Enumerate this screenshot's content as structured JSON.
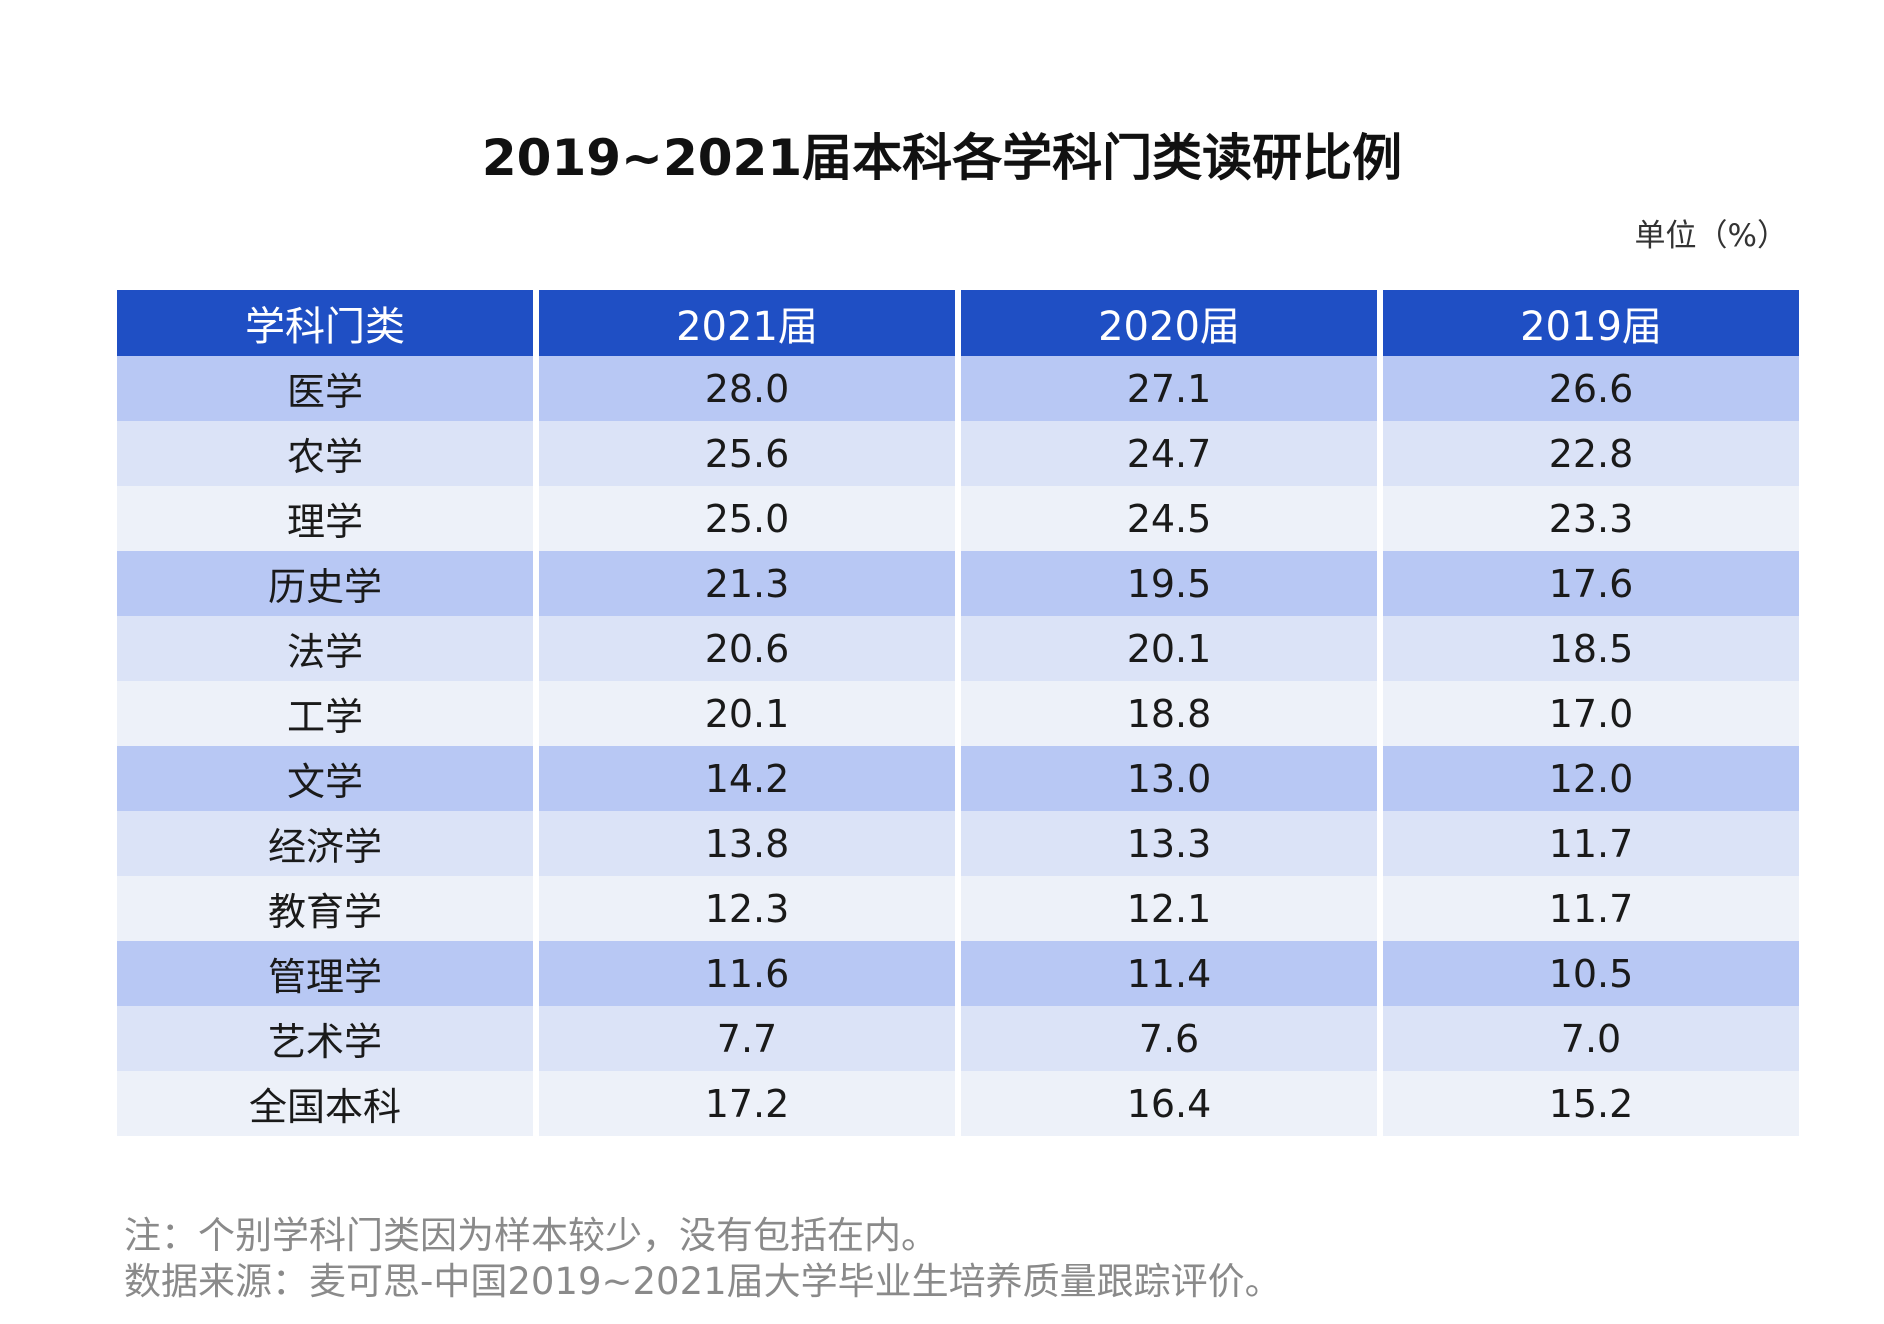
{
  "chart_data": {
    "type": "table",
    "title": "2019~2021届本科各学科门类读研比例",
    "unit": "单位（%）",
    "columns": [
      "学科门类",
      "2021届",
      "2020届",
      "2019届"
    ],
    "rows": [
      {
        "category": "医学",
        "values": [
          "28.0",
          "27.1",
          "26.6"
        ]
      },
      {
        "category": "农学",
        "values": [
          "25.6",
          "24.7",
          "22.8"
        ]
      },
      {
        "category": "理学",
        "values": [
          "25.0",
          "24.5",
          "23.3"
        ]
      },
      {
        "category": "历史学",
        "values": [
          "21.3",
          "19.5",
          "17.6"
        ]
      },
      {
        "category": "法学",
        "values": [
          "20.6",
          "20.1",
          "18.5"
        ]
      },
      {
        "category": "工学",
        "values": [
          "20.1",
          "18.8",
          "17.0"
        ]
      },
      {
        "category": "文学",
        "values": [
          "14.2",
          "13.0",
          "12.0"
        ]
      },
      {
        "category": "经济学",
        "values": [
          "13.8",
          "13.3",
          "11.7"
        ]
      },
      {
        "category": "教育学",
        "values": [
          "12.3",
          "12.1",
          "11.7"
        ]
      },
      {
        "category": "管理学",
        "values": [
          "11.6",
          "11.4",
          "10.5"
        ]
      },
      {
        "category": "艺术学",
        "values": [
          "7.7",
          "7.6",
          "7.0"
        ]
      },
      {
        "category": "全国本科",
        "values": [
          "17.2",
          "16.4",
          "15.2"
        ]
      }
    ],
    "notes": [
      "注：个别学科门类因为样本较少，没有包括在内。",
      "数据来源：麦可思-中国2019~2021届大学毕业生培养质量跟踪评价。"
    ]
  },
  "colors": {
    "header_bg": "#1f4fc4",
    "row_dark": "#b8c8f4",
    "row_mid": "#dbe3f7",
    "row_light": "#edf1f9"
  }
}
